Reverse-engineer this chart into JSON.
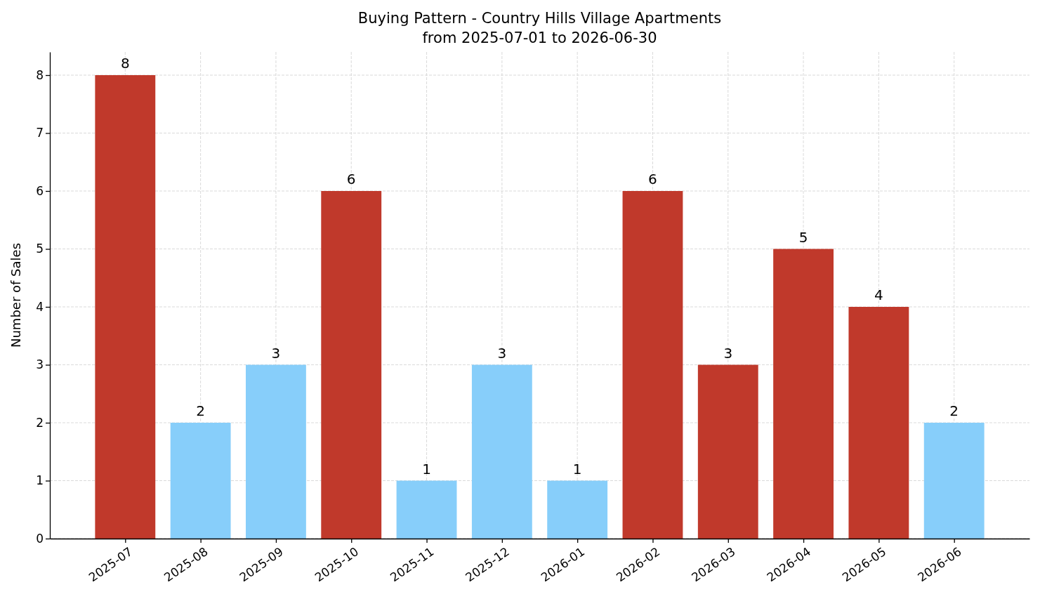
{
  "chart_data": {
    "type": "bar",
    "title": "Buying Pattern - Country Hills Village Apartments",
    "subtitle": "from 2025-07-01 to 2026-06-30",
    "ylabel": "Number of Sales",
    "categories": [
      "2025-07",
      "2025-08",
      "2025-09",
      "2025-10",
      "2025-11",
      "2025-12",
      "2026-01",
      "2026-02",
      "2026-03",
      "2026-04",
      "2026-05",
      "2026-06"
    ],
    "values": [
      8,
      2,
      3,
      6,
      1,
      3,
      1,
      6,
      3,
      5,
      4,
      2
    ],
    "colors": [
      "#c0392b",
      "#87cefa",
      "#87cefa",
      "#c0392b",
      "#87cefa",
      "#87cefa",
      "#87cefa",
      "#c0392b",
      "#c0392b",
      "#c0392b",
      "#c0392b",
      "#87cefa"
    ],
    "ylim": [
      0,
      8.4
    ],
    "yticks": [
      0,
      1,
      2,
      3,
      4,
      5,
      6,
      7,
      8
    ],
    "grid": true,
    "data_labels": true
  }
}
